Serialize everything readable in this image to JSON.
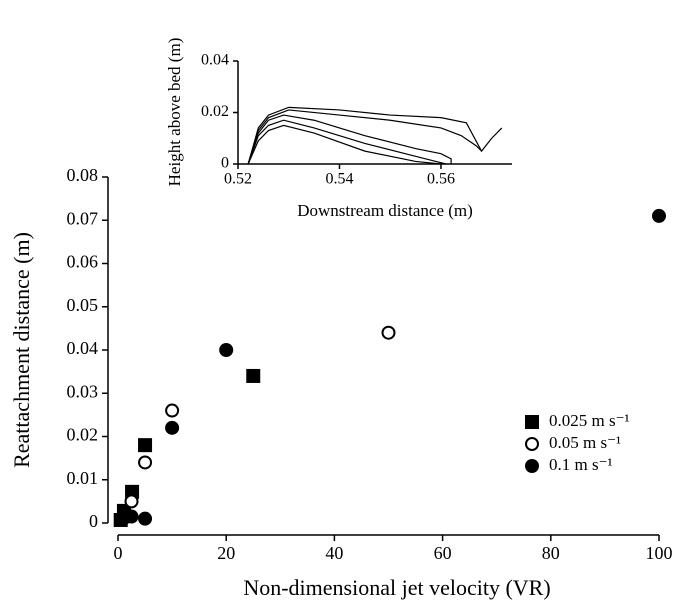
{
  "chart_data": [
    {
      "type": "scatter",
      "x_label": "Non-dimensional jet velocity (VR)",
      "y_label": "Reattachment distance (m)",
      "xlim": [
        0,
        100
      ],
      "xticks": [
        0,
        20,
        40,
        60,
        80,
        100
      ],
      "ylim": [
        0,
        0.08
      ],
      "yticks": [
        0,
        0.01,
        0.02,
        0.03,
        0.04,
        0.05,
        0.06,
        0.07,
        0.08
      ],
      "legend": "right",
      "series": [
        {
          "name": "0.025 m s⁻¹",
          "color": "#000000",
          "marker": "square",
          "x": [
            0.5,
            1.1,
            2.6,
            5,
            25
          ],
          "values": [
            0.0007,
            0.0028,
            0.0072,
            0.018,
            0.034
          ]
        },
        {
          "name": "0.05 m s⁻¹",
          "color": "#000000",
          "marker": "open-circle",
          "x": [
            0.75,
            2.5,
            5,
            10,
            50
          ],
          "values": [
            0.001,
            0.005,
            0.014,
            0.026,
            0.044
          ]
        },
        {
          "name": "0.1 m s⁻¹",
          "color": "#000000",
          "marker": "circle",
          "x": [
            1,
            2.5,
            5,
            10,
            20,
            100
          ],
          "values": [
            0.001,
            0.0015,
            0.001,
            0.022,
            0.04,
            0.071
          ]
        }
      ]
    },
    {
      "type": "line",
      "x_label": "Downstream distance (m)",
      "y_label": "Height above bed (m)",
      "xlim": [
        0.52,
        0.574
      ],
      "xticks": [
        0.52,
        0.54,
        0.56
      ],
      "ylim": [
        0,
        0.04
      ],
      "yticks": [
        0,
        0.02,
        0.04
      ],
      "series": [
        {
          "color": "#000000",
          "x": [
            0.522,
            0.524,
            0.526,
            0.53,
            0.54,
            0.55,
            0.56,
            0.565,
            0.568,
            0.57,
            0.572
          ],
          "values": [
            0,
            0.014,
            0.019,
            0.022,
            0.021,
            0.019,
            0.018,
            0.016,
            0.005,
            0.01,
            0.014
          ]
        },
        {
          "color": "#000000",
          "x": [
            0.522,
            0.524,
            0.526,
            0.53,
            0.54,
            0.55,
            0.56,
            0.564,
            0.567,
            0.568
          ],
          "values": [
            0,
            0.013,
            0.018,
            0.021,
            0.019,
            0.017,
            0.014,
            0.011,
            0.007,
            0.005
          ]
        },
        {
          "color": "#000000",
          "x": [
            0.522,
            0.524,
            0.526,
            0.529,
            0.535,
            0.545,
            0.555,
            0.56,
            0.562,
            0.562
          ],
          "values": [
            0,
            0.012,
            0.017,
            0.019,
            0.017,
            0.011,
            0.006,
            0.004,
            0.002,
            0
          ]
        },
        {
          "color": "#000000",
          "x": [
            0.522,
            0.524,
            0.526,
            0.529,
            0.535,
            0.545,
            0.555,
            0.559,
            0.561
          ],
          "values": [
            0,
            0.011,
            0.015,
            0.017,
            0.014,
            0.008,
            0.003,
            0.001,
            0
          ]
        },
        {
          "color": "#000000",
          "x": [
            0.522,
            0.524,
            0.526,
            0.529,
            0.535,
            0.545,
            0.555,
            0.56
          ],
          "values": [
            0,
            0.009,
            0.013,
            0.015,
            0.012,
            0.005,
            0.001,
            0
          ]
        }
      ]
    }
  ]
}
